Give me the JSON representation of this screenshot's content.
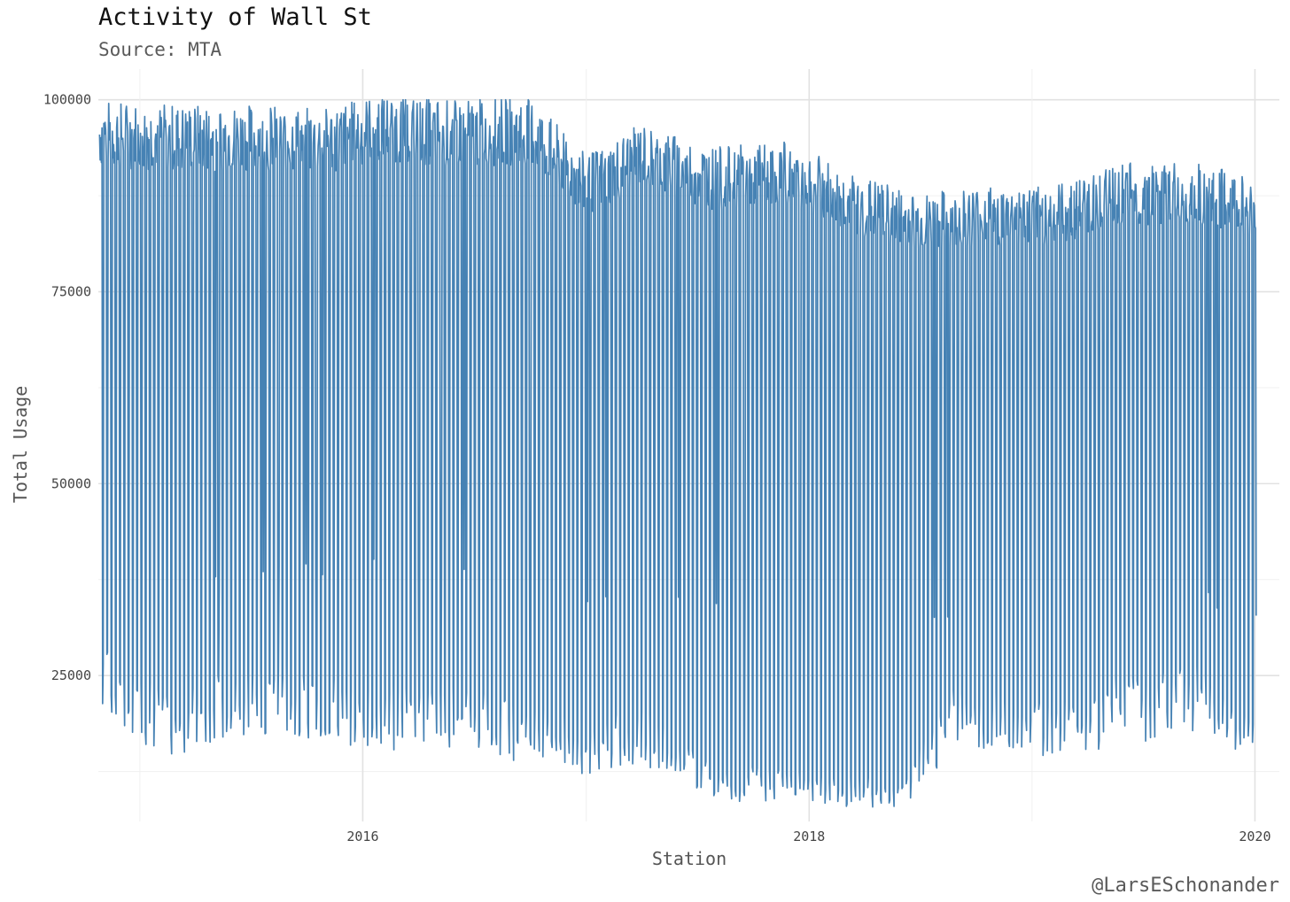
{
  "chart_data": {
    "type": "line",
    "title": "Activity of Wall St",
    "subtitle": "Source: MTA",
    "caption": "@LarsESchonander",
    "xlabel": "Station",
    "ylabel": "Total Usage",
    "x_ticks": [
      "2016",
      "2018",
      "2020"
    ],
    "y_ticks": [
      25000,
      50000,
      75000,
      100000
    ],
    "xlim": [
      "2014-10-25",
      "2020-02-10"
    ],
    "ylim": [
      6000,
      104000
    ],
    "grid": true,
    "legend": "none",
    "line_color": "#4682b4",
    "series": [
      {
        "frequency": "daily",
        "x_start": "2014-10-27",
        "x_end": "2020-01-03",
        "weekday_peaks": [
          {
            "date": "2014-11-01",
            "value": 98000
          },
          {
            "date": "2015-03-01",
            "value": 97500
          },
          {
            "date": "2015-07-01",
            "value": 97500
          },
          {
            "date": "2015-11-01",
            "value": 97000
          },
          {
            "date": "2016-02-01",
            "value": 99000
          },
          {
            "date": "2016-06-01",
            "value": 98000
          },
          {
            "date": "2016-10-01",
            "value": 98500
          },
          {
            "date": "2017-01-01",
            "value": 91000
          },
          {
            "date": "2017-04-01",
            "value": 95000
          },
          {
            "date": "2017-08-01",
            "value": 92000
          },
          {
            "date": "2017-12-01",
            "value": 93000
          },
          {
            "date": "2018-03-01",
            "value": 89000
          },
          {
            "date": "2018-07-01",
            "value": 86000
          },
          {
            "date": "2018-10-01",
            "value": 87000
          },
          {
            "date": "2019-02-01",
            "value": 87000
          },
          {
            "date": "2019-06-01",
            "value": 90000
          },
          {
            "date": "2019-10-01",
            "value": 90000
          },
          {
            "date": "2020-01-03",
            "value": 88000
          }
        ],
        "weekend_lows": [
          {
            "date": "2014-11-01",
            "value": 23000
          },
          {
            "date": "2015-03-01",
            "value": 18000
          },
          {
            "date": "2015-07-01",
            "value": 22000
          },
          {
            "date": "2015-11-01",
            "value": 20000
          },
          {
            "date": "2016-02-01",
            "value": 19000
          },
          {
            "date": "2016-06-01",
            "value": 19000
          },
          {
            "date": "2016-10-01",
            "value": 17000
          },
          {
            "date": "2017-01-01",
            "value": 15000
          },
          {
            "date": "2017-04-01",
            "value": 17000
          },
          {
            "date": "2017-08-01",
            "value": 11000
          },
          {
            "date": "2017-12-01",
            "value": 10000
          },
          {
            "date": "2018-03-01",
            "value": 9500
          },
          {
            "date": "2018-06-01",
            "value": 9500
          },
          {
            "date": "2018-09-01",
            "value": 20000
          },
          {
            "date": "2019-01-01",
            "value": 17000
          },
          {
            "date": "2019-06-01",
            "value": 20000
          },
          {
            "date": "2019-10-01",
            "value": 21000
          },
          {
            "date": "2020-01-03",
            "value": 15000
          }
        ]
      }
    ]
  }
}
